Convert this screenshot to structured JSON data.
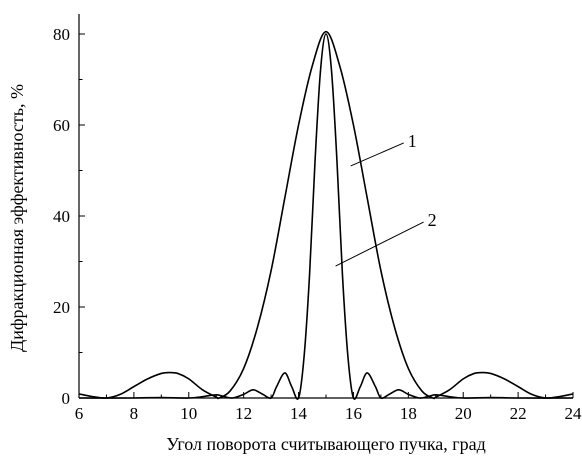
{
  "chart_data": {
    "type": "line",
    "title": "",
    "xlabel": "Угол поворота считывающего пучка, град",
    "ylabel": "Дифракционная эффективность, %",
    "xlim": [
      6,
      24
    ],
    "ylim": [
      0,
      85
    ],
    "x_ticks": [
      6,
      8,
      10,
      12,
      14,
      16,
      18,
      20,
      22,
      24
    ],
    "y_ticks": [
      0,
      20,
      40,
      60,
      80
    ],
    "grid": false,
    "legend": "none",
    "series": [
      {
        "label": "1",
        "points": [
          [
            6.0,
            0.9
          ],
          [
            6.5,
            0.3
          ],
          [
            7.0,
            0.0
          ],
          [
            7.5,
            0.8
          ],
          [
            8.0,
            2.5
          ],
          [
            8.5,
            4.2
          ],
          [
            9.0,
            5.4
          ],
          [
            9.3,
            5.6
          ],
          [
            9.6,
            5.4
          ],
          [
            10.0,
            4.2
          ],
          [
            10.5,
            1.8
          ],
          [
            11.0,
            0.2
          ],
          [
            11.1,
            0.0
          ],
          [
            11.5,
            1.5
          ],
          [
            12.0,
            6.5
          ],
          [
            12.5,
            15.5
          ],
          [
            13.0,
            28.0
          ],
          [
            13.5,
            44.0
          ],
          [
            14.0,
            60.0
          ],
          [
            14.5,
            73.0
          ],
          [
            15.0,
            80.5
          ],
          [
            15.5,
            73.0
          ],
          [
            16.0,
            60.0
          ],
          [
            16.5,
            44.0
          ],
          [
            17.0,
            28.0
          ],
          [
            17.5,
            15.5
          ],
          [
            18.0,
            6.5
          ],
          [
            18.5,
            1.5
          ],
          [
            18.9,
            0.0
          ],
          [
            19.0,
            0.2
          ],
          [
            19.5,
            1.8
          ],
          [
            20.0,
            4.2
          ],
          [
            20.4,
            5.4
          ],
          [
            20.7,
            5.6
          ],
          [
            21.0,
            5.4
          ],
          [
            21.5,
            4.2
          ],
          [
            22.0,
            2.5
          ],
          [
            22.5,
            0.8
          ],
          [
            23.0,
            0.0
          ],
          [
            23.5,
            0.3
          ],
          [
            24.0,
            0.9
          ]
        ]
      },
      {
        "label": "2",
        "points": [
          [
            6.0,
            0.0
          ],
          [
            8.0,
            0.0
          ],
          [
            9.0,
            0.1
          ],
          [
            10.0,
            0.0
          ],
          [
            10.5,
            0.3
          ],
          [
            11.0,
            0.7
          ],
          [
            11.3,
            0.3
          ],
          [
            11.6,
            0.0
          ],
          [
            12.0,
            0.8
          ],
          [
            12.35,
            1.8
          ],
          [
            12.7,
            0.8
          ],
          [
            13.0,
            0.0
          ],
          [
            13.2,
            2.5
          ],
          [
            13.5,
            5.5
          ],
          [
            13.75,
            2.5
          ],
          [
            14.0,
            0.0
          ],
          [
            14.2,
            9.0
          ],
          [
            14.4,
            27.0
          ],
          [
            14.6,
            52.0
          ],
          [
            14.8,
            72.0
          ],
          [
            15.0,
            80.0
          ],
          [
            15.2,
            72.0
          ],
          [
            15.4,
            52.0
          ],
          [
            15.6,
            27.0
          ],
          [
            15.8,
            9.0
          ],
          [
            16.0,
            0.0
          ],
          [
            16.25,
            2.5
          ],
          [
            16.5,
            5.5
          ],
          [
            16.8,
            2.5
          ],
          [
            17.0,
            0.0
          ],
          [
            17.3,
            0.8
          ],
          [
            17.65,
            1.8
          ],
          [
            18.0,
            0.8
          ],
          [
            18.4,
            0.0
          ],
          [
            18.7,
            0.3
          ],
          [
            19.0,
            0.7
          ],
          [
            19.5,
            0.3
          ],
          [
            20.0,
            0.0
          ],
          [
            21.0,
            0.1
          ],
          [
            22.0,
            0.0
          ],
          [
            24.0,
            0.0
          ]
        ]
      }
    ],
    "annotations": [
      {
        "text": "1",
        "series": 0,
        "x": 15.9,
        "y": 51
      },
      {
        "text": "2",
        "series": 1,
        "x": 15.35,
        "y": 29
      }
    ]
  }
}
